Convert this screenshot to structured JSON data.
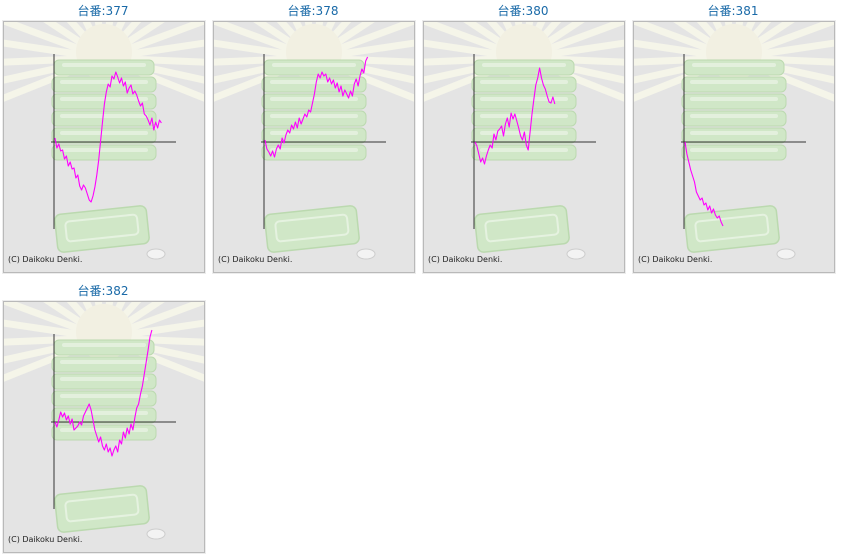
{
  "page": {
    "background": "#ffffff"
  },
  "style": {
    "title_color": "#1a6aa8",
    "line_color": "#ff00ff",
    "axis_color": "#333333",
    "panel_background": "#e4e4e4",
    "panel_border": "#b9b9b9",
    "decoration_color": "#cfe8c6"
  },
  "panels": [
    {
      "title": "台番:377",
      "copyright": "(C) Daikoku Denki.",
      "chart_data": {
        "type": "line",
        "x_axis": "time",
        "y_baseline": 0,
        "grid": false,
        "values": [
          4,
          -6,
          -2,
          -9,
          -8,
          -17,
          -14,
          -24,
          -20,
          -27,
          -26,
          -36,
          -33,
          -44,
          -48,
          -43,
          -46,
          -52,
          -58,
          -60,
          -54,
          -45,
          -33,
          -18,
          1,
          20,
          38,
          50,
          58,
          55,
          66,
          63,
          70,
          65,
          59,
          64,
          56,
          60,
          49,
          54,
          57,
          48,
          51,
          47,
          41,
          36,
          39,
          28,
          26,
          22,
          17,
          24,
          12,
          20,
          14,
          22,
          19
        ]
      }
    },
    {
      "title": "台番:378",
      "copyright": "(C) Daikoku Denki.",
      "chart_data": {
        "type": "line",
        "x_axis": "time",
        "y_baseline": 0,
        "grid": false,
        "values": [
          2,
          -7,
          -10,
          -14,
          -9,
          -15,
          -7,
          -3,
          -7,
          4,
          -1,
          7,
          12,
          9,
          17,
          13,
          20,
          14,
          24,
          18,
          23,
          28,
          25,
          32,
          30,
          39,
          48,
          60,
          68,
          64,
          70,
          66,
          68,
          60,
          64,
          58,
          62,
          54,
          59,
          50,
          56,
          46,
          52,
          48,
          44,
          51,
          46,
          58,
          63,
          56,
          66,
          73,
          69,
          81,
          85
        ]
      }
    },
    {
      "title": "台番:380",
      "copyright": "(C) Daikoku Denki.",
      "chart_data": {
        "type": "line",
        "x_axis": "time",
        "y_baseline": 0,
        "grid": false,
        "values": [
          0,
          -4,
          -12,
          -20,
          -16,
          -22,
          -14,
          -8,
          -3,
          -6,
          8,
          2,
          11,
          13,
          16,
          6,
          18,
          24,
          15,
          29,
          23,
          28,
          21,
          14,
          6,
          2,
          10,
          -3,
          -8,
          10,
          28,
          43,
          57,
          64,
          74,
          64,
          57,
          53,
          46,
          40,
          39,
          45,
          38
        ]
      }
    },
    {
      "title": "台番:381",
      "copyright": "(C) Daikoku Denki.",
      "chart_data": {
        "type": "line",
        "x_axis": "time",
        "y_baseline": 0,
        "grid": false,
        "values": [
          0,
          -12,
          -20,
          -28,
          -34,
          -40,
          -50,
          -54,
          -58,
          -56,
          -63,
          -61,
          -68,
          -64,
          -71,
          -67,
          -73,
          -76,
          -74,
          -80,
          -84
        ]
      }
    },
    {
      "title": "台番:382",
      "copyright": "(C) Daikoku Denki.",
      "chart_data": {
        "type": "line",
        "x_axis": "time",
        "y_baseline": 0,
        "grid": false,
        "values": [
          0,
          -5,
          2,
          10,
          5,
          9,
          2,
          6,
          -2,
          3,
          -8,
          -6,
          -4,
          0,
          -3,
          6,
          10,
          14,
          18,
          12,
          2,
          -8,
          -14,
          -20,
          -15,
          -24,
          -28,
          -22,
          -30,
          -26,
          -34,
          -28,
          -24,
          -30,
          -18,
          -22,
          -10,
          -16,
          -6,
          -12,
          -2,
          -8,
          4,
          14,
          18,
          28,
          36,
          48,
          60,
          72,
          85,
          92
        ]
      }
    }
  ]
}
